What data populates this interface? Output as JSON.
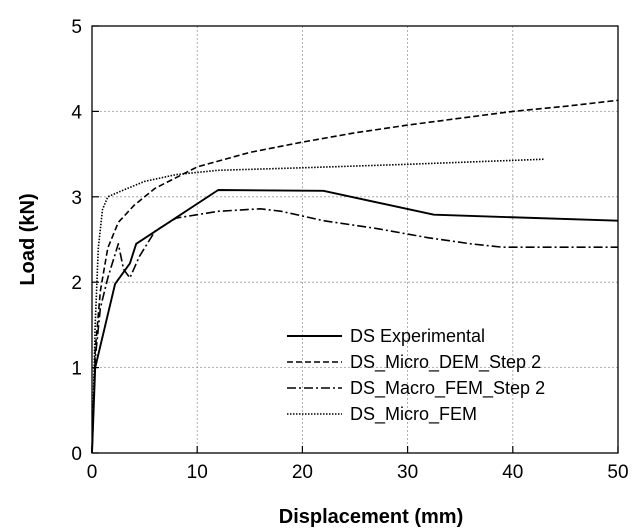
{
  "chart_data": {
    "type": "line",
    "title": "",
    "xlabel": "Displacement (mm)",
    "ylabel": "Load (kN)",
    "xlim": [
      0,
      50
    ],
    "ylim": [
      0,
      5
    ],
    "xticks": [
      "0",
      "10",
      "20",
      "30",
      "40",
      "50"
    ],
    "yticks": [
      "0",
      "1",
      "2",
      "3",
      "4",
      "5"
    ],
    "grid": true,
    "legend_position": "bottom-right",
    "series": [
      {
        "name": "DS Experimental",
        "dash": "solid",
        "x": [
          0,
          0.3,
          2.2,
          3.6,
          4.2,
          12,
          22,
          32.5,
          50
        ],
        "y": [
          0,
          1.0,
          1.98,
          2.22,
          2.45,
          3.08,
          3.07,
          2.79,
          2.72
        ]
      },
      {
        "name": "DS_Micro_DEM_Step 2",
        "dash": "dashed",
        "x": [
          0,
          0.3,
          0.8,
          1.5,
          2.5,
          4,
          6,
          10,
          15,
          20,
          25,
          30,
          35,
          40,
          45,
          50
        ],
        "y": [
          0,
          1.2,
          1.9,
          2.4,
          2.7,
          2.9,
          3.1,
          3.35,
          3.52,
          3.64,
          3.75,
          3.84,
          3.92,
          4.0,
          4.06,
          4.13
        ]
      },
      {
        "name": "DS_Macro_FEM_Step 2",
        "dash": "dashdot",
        "x": [
          0,
          0.3,
          0.8,
          1.5,
          2.5,
          3.0,
          3.6,
          4.5,
          6,
          8,
          12,
          16,
          18,
          22,
          27,
          32,
          36,
          39,
          45,
          50
        ],
        "y": [
          0,
          1.1,
          1.7,
          2.05,
          2.45,
          2.15,
          2.05,
          2.3,
          2.6,
          2.75,
          2.83,
          2.86,
          2.83,
          2.72,
          2.63,
          2.52,
          2.45,
          2.41,
          2.41,
          2.41
        ]
      },
      {
        "name": "DS_Micro_FEM",
        "dash": "dotted",
        "x": [
          0,
          0.3,
          0.6,
          1.0,
          1.5,
          3,
          5,
          8,
          12,
          20,
          30,
          43
        ],
        "y": [
          0,
          1.5,
          2.4,
          2.85,
          3.0,
          3.08,
          3.18,
          3.26,
          3.31,
          3.34,
          3.38,
          3.44
        ]
      }
    ]
  }
}
